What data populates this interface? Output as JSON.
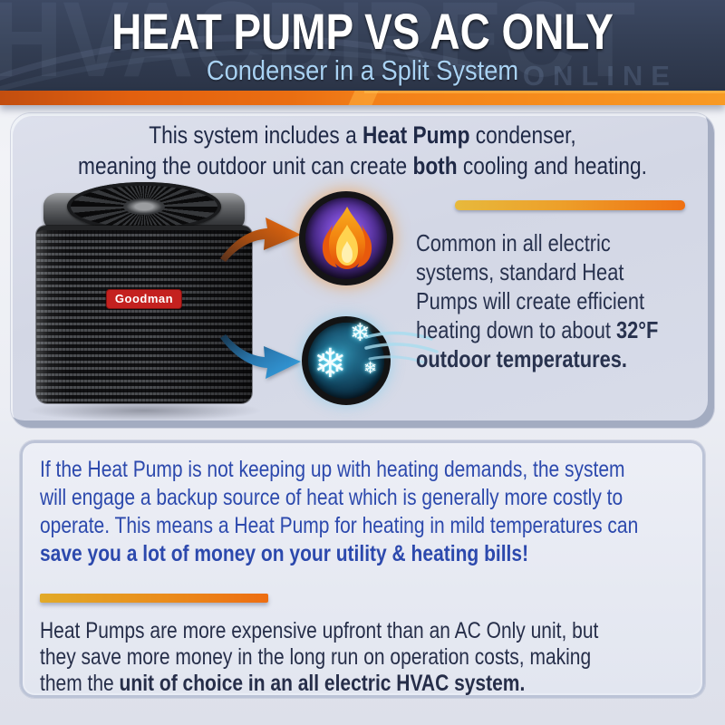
{
  "header": {
    "title": "HEAT PUMP VS AC ONLY",
    "subtitle": "Condenser in a Split System",
    "watermark": "HVACDIRECT",
    "watermark_sub": "ONLINE"
  },
  "intro": {
    "lines": [
      [
        {
          "t": "This system includes a "
        },
        {
          "t": "Heat Pump",
          "b": true
        },
        {
          "t": " condenser,"
        }
      ],
      [
        {
          "t": "meaning the outdoor unit can create "
        },
        {
          "t": "both",
          "b": true
        },
        {
          "t": " cooling and heating."
        }
      ]
    ]
  },
  "condenser_brand": "Goodman",
  "heating_note": {
    "lines": [
      [
        {
          "t": "Common in all electric"
        }
      ],
      [
        {
          "t": "systems, standard Heat"
        }
      ],
      [
        {
          "t": "Pumps will create efficient"
        }
      ],
      [
        {
          "t": "heating down to about "
        },
        {
          "t": "32°F",
          "b": true
        }
      ],
      [
        {
          "t": "outdoor temperatures.",
          "b": true
        }
      ]
    ]
  },
  "backup_note": {
    "lines": [
      [
        {
          "t": "If the Heat Pump is not keeping up with heating demands, the system"
        }
      ],
      [
        {
          "t": "will engage a backup source of heat which is generally more costly to"
        }
      ],
      [
        {
          "t": "operate. This means a Heat Pump for heating in mild temperatures can"
        }
      ],
      [
        {
          "t": "save you a lot of money on your utility & heating bills!",
          "b": true
        }
      ]
    ]
  },
  "cost_note": {
    "lines": [
      [
        {
          "t": "Heat Pumps are more expensive upfront than an AC Only unit, but"
        }
      ],
      [
        {
          "t": "they save more money in the long run on operation costs, making"
        }
      ],
      [
        {
          "t": "them the "
        },
        {
          "t": "unit of choice in an all electric HVAC system.",
          "b": true
        }
      ]
    ]
  },
  "icons": {
    "fire": "fire-icon",
    "snowflake": "snowflake-icon",
    "heat_arrow": "orange-curved-arrow",
    "cool_arrow": "blue-curved-arrow",
    "snowflake_glyph": "❄"
  },
  "colors": {
    "header_bg": "#333e52",
    "accent_orange": "#ef7012",
    "accent_gold": "#e7b93c",
    "title_white": "#ffffff",
    "subtitle_blue": "#a9d2f3",
    "navy_text": "#262e49",
    "royal_blue_text": "#2c49ad",
    "card1_bg": "#d5d9e6",
    "card2_bg": "#e8eaf3",
    "goodman_red": "#c4211f",
    "fire_orange": "#f5820d",
    "ice_cyan": "#7deaff"
  }
}
